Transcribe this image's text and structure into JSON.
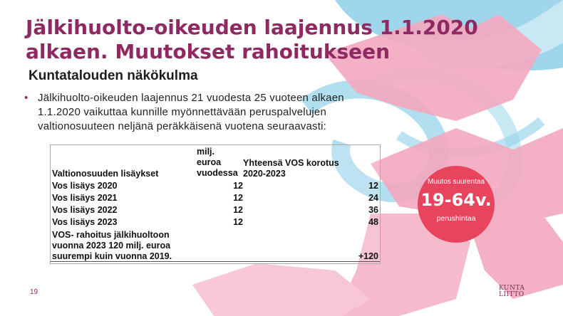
{
  "slide": {
    "title_line1": "Jälkihuolto-oikeuden laajennus 1.1.2020",
    "title_line2": "alkaen. Muutokset rahoitukseen",
    "subtitle": "Kuntatalouden näkökulma",
    "bullet_line1": "Jälkihuolto-oikeuden laajennus 21 vuodesta 25 vuoteen alkaen",
    "bullet_line2": "1.1.2020 vaikuttaa kunnille myönnettävään peruspalvelujen",
    "bullet_line3": "valtionosuuteen neljänä peräkkäisenä vuotena seuraavasti:",
    "page_number": "19"
  },
  "table": {
    "header_label": "Valtionosuuden lisäykset",
    "header_milj_1": "milj.",
    "header_milj_2": "euroa",
    "header_milj_3": "vuodessa",
    "header_yht_1": "Yhteensä VOS korotus",
    "header_yht_2": "2020-2023",
    "rows": [
      {
        "label": "Vos lisäys 2020",
        "milj": "12",
        "total": "12"
      },
      {
        "label": "Vos lisäys 2021",
        "milj": "12",
        "total": "24"
      },
      {
        "label": "Vos lisäys 2022",
        "milj": "12",
        "total": "36"
      },
      {
        "label": "Vos lisäys 2023",
        "milj": "12",
        "total": "48"
      }
    ],
    "footer_line1": "VOS- rahoitus jälkihuoltoon",
    "footer_line2": "vuonna 2023 120 milj. euroa",
    "footer_line3": "suurempi kuin vuonna 2019.",
    "footer_value": "+120"
  },
  "badge": {
    "top_text": "Muutos suurentaa",
    "big_text": "19-64v.",
    "bottom_text": "perushintaa",
    "color": "#e8445e"
  },
  "logo": {
    "line1": "KUNTA",
    "line2": "LIITTO"
  },
  "colors": {
    "title": "#8e2a61",
    "pink_brush": "#f3a8bf",
    "blue_brush": "#8fd0e8"
  }
}
